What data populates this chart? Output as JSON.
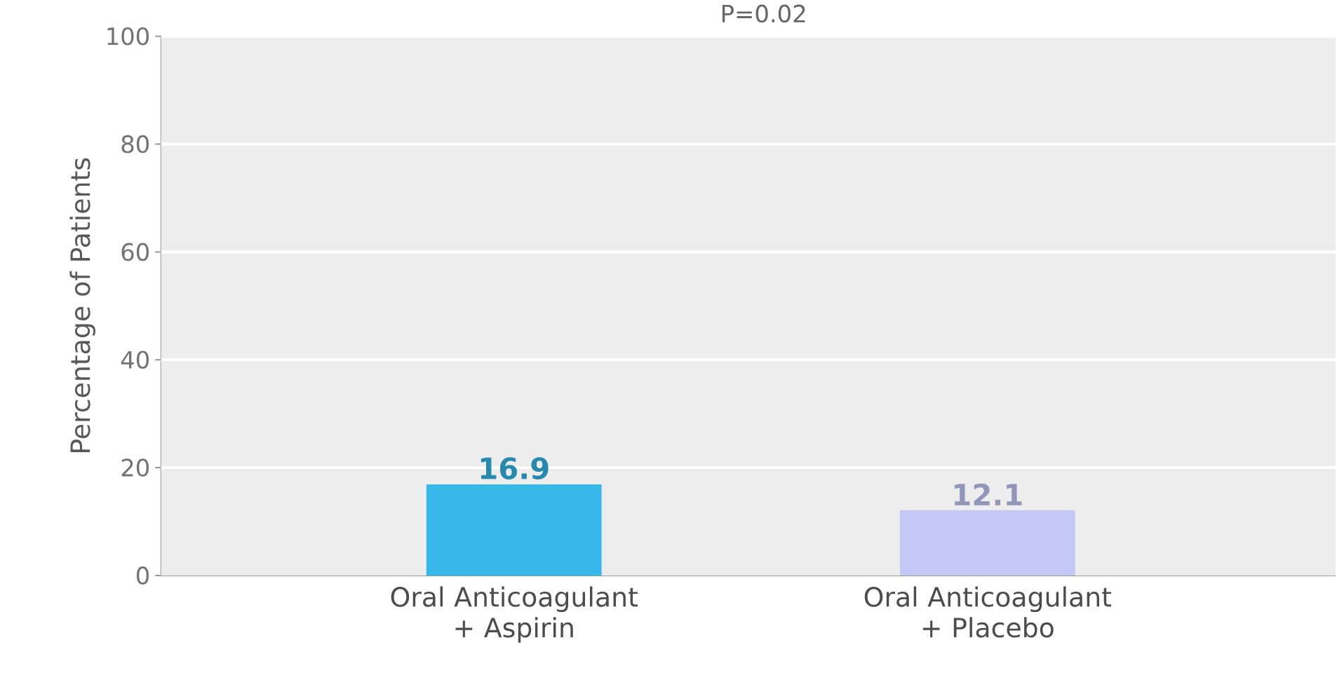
{
  "chart_data": {
    "type": "bar",
    "ylabel": "Percentage of Patients",
    "categories": [
      "Oral Anticoagulant + Aspirin",
      "Oral Anticoagulant + Placebo"
    ],
    "values": [
      16.9,
      12.1
    ],
    "colors": [
      "#35b7ea",
      "#c3c8f6"
    ],
    "ylim": [
      0,
      100
    ],
    "yticks": [
      0,
      20,
      40,
      60,
      80,
      100
    ],
    "grid": "y",
    "data_labels": true,
    "annotations": [
      "P=0.02"
    ]
  }
}
